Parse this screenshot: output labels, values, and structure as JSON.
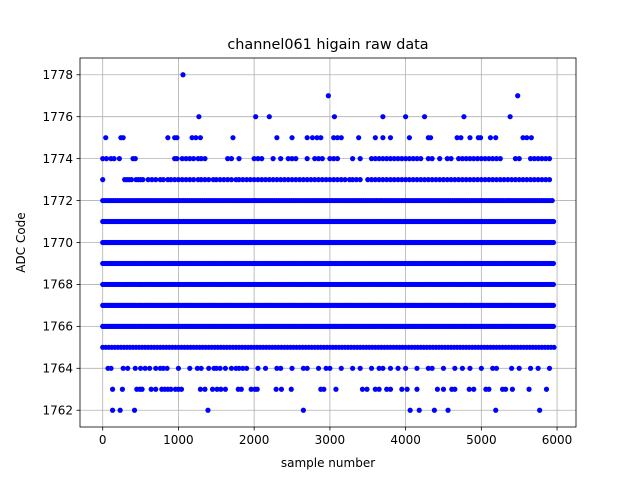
{
  "chart_data": {
    "type": "scatter",
    "title": "channel061 higain raw data",
    "xlabel": "sample number",
    "ylabel": "ADC Code",
    "xlim": [
      -300,
      6250
    ],
    "ylim": [
      1761.2,
      1778.8
    ],
    "xticks": [
      0,
      1000,
      2000,
      3000,
      4000,
      5000,
      6000
    ],
    "xtick_labels": [
      "0",
      "1000",
      "2000",
      "3000",
      "4000",
      "5000",
      "6000"
    ],
    "yticks": [
      1762,
      1764,
      1766,
      1768,
      1770,
      1772,
      1774,
      1776,
      1778
    ],
    "ytick_labels": [
      "1762",
      "1764",
      "1766",
      "1768",
      "1770",
      "1772",
      "1774",
      "1776",
      "1778"
    ],
    "grid": true,
    "marker_color": "#0000ff",
    "n_samples": 6000,
    "series": [
      {
        "points": [
          {
            "y": 1766,
            "x_step": 24,
            "x_range": [
              0,
              5960
            ]
          },
          {
            "y": 1767,
            "x_step": 24,
            "x_range": [
              0,
              5960
            ]
          },
          {
            "y": 1768,
            "x_step": 24,
            "x_range": [
              0,
              5960
            ]
          },
          {
            "y": 1769,
            "x_step": 24,
            "x_range": [
              0,
              5960
            ]
          },
          {
            "y": 1770,
            "x_step": 24,
            "x_range": [
              0,
              5960
            ]
          },
          {
            "y": 1771,
            "x_step": 26,
            "x_range": [
              0,
              5960
            ]
          },
          {
            "y": 1772,
            "x_step": 28,
            "x_range": [
              0,
              5960
            ]
          },
          {
            "y": 1773,
            "x": [
              0,
              290,
              320,
              350,
              380,
              440,
              470,
              500,
              530,
              600,
              650,
              700,
              760,
              800,
              860,
              900,
              950,
              1000,
              1050,
              1100,
              1150,
              1200,
              1260,
              1300,
              1350,
              1400,
              1460,
              1500,
              1550,
              1600,
              1650,
              1700,
              1760,
              1800,
              1850,
              1900,
              1950,
              2000,
              2050,
              2100,
              2150,
              2200,
              2250,
              2300,
              2350,
              2400,
              2450,
              2500,
              2550,
              2600,
              2650,
              2700,
              2750,
              2800,
              2850,
              2900,
              2950,
              3000,
              3050,
              3100,
              3150,
              3200,
              3260,
              3300,
              3350,
              3400,
              3500,
              3550,
              3600,
              3650,
              3700,
              3750,
              3800,
              3850,
              3900,
              3950,
              4000,
              4050,
              4100,
              4150,
              4200,
              4250,
              4300,
              4350,
              4400,
              4450,
              4500,
              4550,
              4600,
              4650,
              4700,
              4750,
              4800,
              4850,
              4900,
              4950,
              5000,
              5050,
              5100,
              5150,
              5200,
              5250,
              5300,
              5350,
              5400,
              5450,
              5500,
              5550,
              5600,
              5650,
              5700,
              5750,
              5800,
              5850,
              5900
            ]
          },
          {
            "y": 1774,
            "x": [
              0,
              50,
              110,
              150,
              220,
              400,
              430,
              950,
              980,
              1050,
              1100,
              1150,
              1200,
              1260,
              1300,
              1350,
              1650,
              1700,
              1800,
              2000,
              2050,
              2100,
              2250,
              2350,
              2450,
              2500,
              2550,
              2700,
              2800,
              2850,
              2900,
              3000,
              3050,
              3100,
              3300,
              3400,
              3550,
              3600,
              3650,
              3700,
              3750,
              3800,
              3850,
              3900,
              3950,
              4000,
              4050,
              4100,
              4150,
              4200,
              4300,
              4350,
              4450,
              4550,
              4600,
              4700,
              4750,
              4800,
              4850,
              4900,
              4950,
              5000,
              5050,
              5100,
              5150,
              5200,
              5250,
              5450,
              5500,
              5650,
              5700,
              5750,
              5800,
              5850,
              5900
            ]
          },
          {
            "y": 1775,
            "x": [
              40,
              240,
              270,
              860,
              950,
              980,
              1180,
              1230,
              1290,
              1720,
              2300,
              2500,
              2700,
              2770,
              2830,
              2880,
              3050,
              3100,
              3150,
              3380,
              3600,
              3700,
              3800,
              4050,
              4300,
              4330,
              4680,
              4730,
              4850,
              4960,
              4990,
              5120,
              5190,
              5550,
              5600,
              5660
            ]
          },
          {
            "y": 1776,
            "x": [
              1270,
              2020,
              2200,
              3060,
              3700,
              4000,
              4250,
              4770,
              5380
            ]
          },
          {
            "y": 1777,
            "x": [
              2980,
              5480
            ]
          },
          {
            "y": 1778,
            "x": [
              1060
            ]
          },
          {
            "y": 1765,
            "x_step": 40,
            "x_range": [
              0,
              5960
            ]
          },
          {
            "y": 1764,
            "x": [
              70,
              110,
              270,
              330,
              430,
              500,
              560,
              620,
              700,
              760,
              800,
              850,
              1000,
              1150,
              1250,
              1300,
              1400,
              1470,
              1500,
              1550,
              1620,
              1700,
              1760,
              1800,
              1850,
              1900,
              2050,
              2150,
              2300,
              2350,
              2500,
              2650,
              2700,
              2850,
              2950,
              3000,
              3150,
              3300,
              3400,
              3550,
              3650,
              3700,
              3800,
              3900,
              4000,
              4150,
              4300,
              4350,
              4500,
              4650,
              4750,
              4850,
              5000,
              5150,
              5200,
              5400,
              5500,
              5650,
              5750,
              5900
            ]
          },
          {
            "y": 1763,
            "x": [
              130,
              260,
              450,
              490,
              520,
              640,
              700,
              780,
              820,
              860,
              900,
              960,
              1000,
              1040,
              1290,
              1350,
              1450,
              1510,
              1560,
              1620,
              1790,
              1830,
              1960,
              2010,
              2040,
              2290,
              2360,
              2490,
              2880,
              2920,
              3080,
              3430,
              3490,
              3600,
              3650,
              3750,
              3800,
              3950,
              4020,
              4150,
              4420,
              4500,
              4610,
              4650,
              4840,
              4900,
              5060,
              5100,
              5280,
              5320,
              5410,
              5630,
              5860
            ]
          },
          {
            "y": 1762,
            "x": [
              130,
              230,
              420,
              1390,
              2650,
              4060,
              4180,
              4380,
              4560,
              5190,
              5770
            ]
          }
        ]
      }
    ]
  }
}
